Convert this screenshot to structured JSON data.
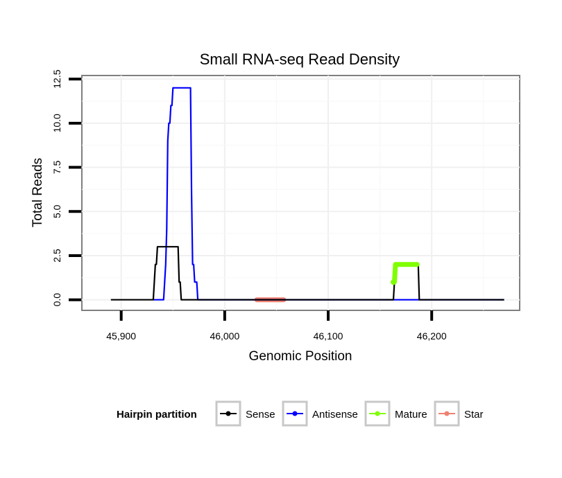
{
  "chart_data": {
    "type": "line",
    "title": "Small RNA-seq Read Density",
    "xlabel": "Genomic Position",
    "ylabel": "Total Reads",
    "xlim": [
      45862,
      46285
    ],
    "ylim": [
      -0.6,
      12.7
    ],
    "x_ticks": [
      45900,
      46000,
      46100,
      46200
    ],
    "x_tick_labels": [
      "45,900",
      "46,000",
      "46,100",
      "46,200"
    ],
    "y_ticks": [
      0,
      2.5,
      5,
      7.5,
      10,
      12.5
    ],
    "y_tick_labels": [
      "0.0",
      "2.5",
      "5.0",
      "7.5",
      "10.0",
      "12.5"
    ],
    "grid": true,
    "legend": {
      "title": "Hairpin partition",
      "position": "bottom",
      "entries": [
        "Sense",
        "Antisense",
        "Mature",
        "Star"
      ]
    },
    "series": [
      {
        "name": "Sense",
        "color": "#000000",
        "points": [
          [
            45890,
            0
          ],
          [
            45931,
            0
          ],
          [
            45932,
            1
          ],
          [
            45933,
            2
          ],
          [
            45934,
            2
          ],
          [
            45935,
            3
          ],
          [
            45955,
            3
          ],
          [
            45956,
            1
          ],
          [
            45957,
            1
          ],
          [
            45958,
            0
          ],
          [
            46163,
            0
          ],
          [
            46164,
            1
          ],
          [
            46165,
            2
          ],
          [
            46187,
            2
          ],
          [
            46188,
            0
          ],
          [
            46270,
            0
          ]
        ]
      },
      {
        "name": "Antisense",
        "color": "#0000ff",
        "points": [
          [
            45931,
            0
          ],
          [
            45941,
            0
          ],
          [
            45942,
            1
          ],
          [
            45943,
            2
          ],
          [
            45944,
            4
          ],
          [
            45945,
            9
          ],
          [
            45946,
            10
          ],
          [
            45947,
            10
          ],
          [
            45948,
            11
          ],
          [
            45949,
            11
          ],
          [
            45950,
            12
          ],
          [
            45967,
            12
          ],
          [
            45968,
            6
          ],
          [
            45969,
            2
          ],
          [
            45970,
            2
          ],
          [
            45971,
            1
          ],
          [
            45972,
            1
          ],
          [
            45973,
            1
          ],
          [
            45974,
            0
          ],
          [
            46270,
            0
          ]
        ]
      },
      {
        "name": "Mature",
        "color": "#7fff00",
        "points": [
          [
            46163,
            1
          ],
          [
            46164,
            1
          ],
          [
            46165,
            2
          ],
          [
            46186,
            2
          ]
        ]
      },
      {
        "name": "Star",
        "color": "#f08070",
        "points": [
          [
            46031,
            0
          ],
          [
            46057,
            0
          ]
        ]
      }
    ]
  }
}
